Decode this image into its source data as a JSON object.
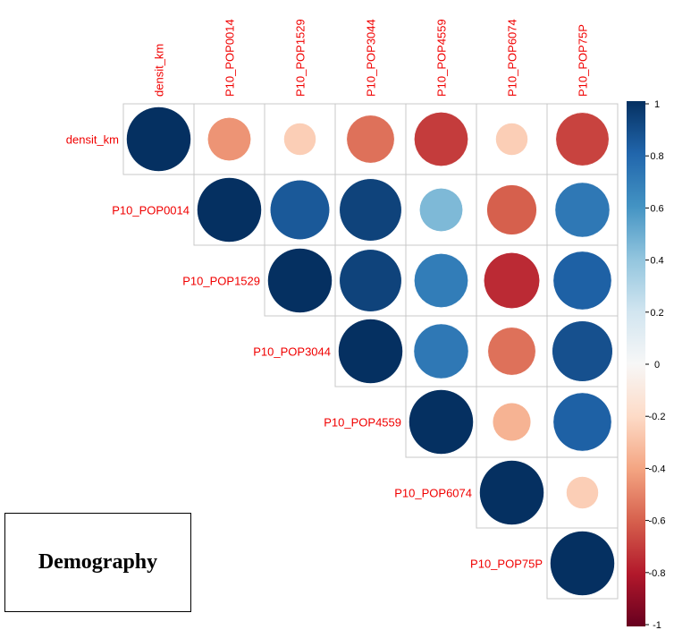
{
  "chart_data": {
    "type": "heatmap",
    "variables": [
      "densit_km",
      "P10_POP0014",
      "P10_POP1529",
      "P10_POP3044",
      "P10_POP4559",
      "P10_POP6074",
      "P10_POP75P"
    ],
    "matrix": [
      [
        1.0,
        -0.45,
        -0.25,
        -0.55,
        -0.7,
        -0.25,
        -0.68
      ],
      [
        null,
        1.0,
        0.85,
        0.93,
        0.45,
        -0.6,
        0.72
      ],
      [
        null,
        null,
        1.0,
        0.93,
        0.7,
        -0.75,
        0.82
      ],
      [
        null,
        null,
        null,
        1.0,
        0.72,
        -0.55,
        0.88
      ],
      [
        null,
        null,
        null,
        null,
        1.0,
        -0.35,
        0.82
      ],
      [
        null,
        null,
        null,
        null,
        null,
        1.0,
        -0.25
      ],
      [
        null,
        null,
        null,
        null,
        null,
        null,
        1.0
      ]
    ],
    "shape": "upper-triangle",
    "colorbar": {
      "range": [
        -1,
        1
      ],
      "ticks": [
        "1",
        "0.8",
        "0.6",
        "0.4",
        "0.2",
        "0",
        "-0.2",
        "-0.4",
        "-0.6",
        "-0.8",
        "-1"
      ]
    },
    "colors": {
      "neg_strong": "#67001f",
      "neg_mid": "#d6604d",
      "zero": "#f7f7f7",
      "pos_mid": "#4393c3",
      "pos_strong": "#053061",
      "label": "#f00000",
      "grid": "#c8c8c8"
    }
  },
  "caption": "Demography"
}
